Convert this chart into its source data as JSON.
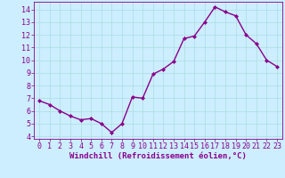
{
  "x": [
    0,
    1,
    2,
    3,
    4,
    5,
    6,
    7,
    8,
    9,
    10,
    11,
    12,
    13,
    14,
    15,
    16,
    17,
    18,
    19,
    20,
    21,
    22,
    23
  ],
  "y": [
    6.8,
    6.5,
    6.0,
    5.6,
    5.3,
    5.4,
    5.0,
    4.3,
    5.0,
    7.1,
    7.0,
    8.9,
    9.3,
    9.9,
    11.7,
    11.9,
    13.0,
    14.2,
    13.8,
    13.5,
    12.0,
    11.3,
    10.0,
    9.5
  ],
  "line_color": "#8B008B",
  "marker": "D",
  "marker_size": 2,
  "line_width": 1.0,
  "bg_color": "#cceeff",
  "grid_color": "#aadddd",
  "xlabel": "Windchill (Refroidissement éolien,°C)",
  "xlabel_color": "#8B008B",
  "xlabel_fontsize": 6.5,
  "tick_color": "#8B008B",
  "tick_fontsize": 6,
  "ylim": [
    3.8,
    14.6
  ],
  "yticks": [
    4,
    5,
    6,
    7,
    8,
    9,
    10,
    11,
    12,
    13,
    14
  ],
  "xlim": [
    -0.5,
    23.5
  ],
  "xticks": [
    0,
    1,
    2,
    3,
    4,
    5,
    6,
    7,
    8,
    9,
    10,
    11,
    12,
    13,
    14,
    15,
    16,
    17,
    18,
    19,
    20,
    21,
    22,
    23
  ],
  "spine_color": "#8B008B"
}
